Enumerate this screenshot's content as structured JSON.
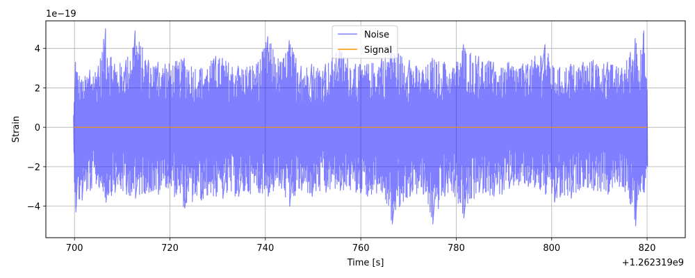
{
  "chart_data": {
    "type": "line",
    "title": "",
    "xlabel": "Time [s]",
    "ylabel": "Strain",
    "x_offset_label": "+1.262319e9",
    "y_scale_label": "1e−19",
    "xlim": [
      694,
      828
    ],
    "ylim": [
      -5.6,
      5.4
    ],
    "x_ticks": [
      700,
      720,
      740,
      760,
      780,
      800,
      820
    ],
    "x_tick_labels": [
      "700",
      "720",
      "740",
      "760",
      "780",
      "800",
      "820"
    ],
    "y_ticks": [
      -4,
      -2,
      0,
      2,
      4
    ],
    "y_tick_labels": [
      "−4",
      "−2",
      "0",
      "2",
      "4"
    ],
    "grid": true,
    "legend_position": "top-center",
    "x_range": [
      699.8,
      820
    ],
    "series": [
      {
        "name": "Noise",
        "color": "#0000ff",
        "alpha": 0.5,
        "x": [
          699.8,
          700.2,
          701.5,
          703.2,
          705.0,
          706.5,
          708.4,
          710.8,
          712.7,
          715.5,
          717.5,
          719.0,
          723.0,
          726.5,
          729.6,
          731.0,
          734.3,
          738.5,
          740.5,
          743.3,
          745.0,
          747.5,
          749.7,
          752.6,
          755.6,
          758.9,
          761.3,
          764.4,
          766.5,
          770.2,
          773.0,
          775.0,
          777.5,
          779.3,
          781.5,
          784.7,
          787.8,
          789.5,
          791.0,
          795.0,
          798.6,
          800.5,
          804.0,
          806.6,
          808.7,
          811.7,
          814.7,
          816.5,
          817.5,
          819.3,
          820.0
        ],
        "min": [
          -1.3,
          -4.3,
          -3.7,
          -3.2,
          -3.0,
          -3.8,
          -3.3,
          -3.4,
          -3.6,
          -3.3,
          -3.4,
          -3.0,
          -4.1,
          -3.7,
          -3.5,
          -3.6,
          -3.5,
          -3.3,
          -3.5,
          -3.1,
          -4.0,
          -3.2,
          -3.5,
          -3.3,
          -3.2,
          -3.3,
          -3.5,
          -3.3,
          -4.9,
          -3.5,
          -3.4,
          -4.9,
          -3.5,
          -3.3,
          -4.6,
          -3.3,
          -3.5,
          -3.4,
          -3.1,
          -3.0,
          -3.4,
          -3.8,
          -3.6,
          -3.0,
          -3.2,
          -3.4,
          -3.0,
          -3.9,
          -5.0,
          -3.3,
          -2.0
        ],
        "max": [
          0.6,
          3.3,
          2.4,
          2.9,
          3.1,
          5.0,
          3.2,
          3.4,
          4.9,
          3.4,
          3.3,
          3.2,
          3.5,
          3.0,
          3.6,
          3.5,
          3.1,
          3.3,
          4.6,
          3.3,
          4.4,
          3.1,
          3.2,
          3.2,
          4.0,
          3.2,
          3.2,
          3.5,
          4.1,
          3.4,
          2.9,
          3.5,
          3.3,
          3.0,
          4.2,
          3.6,
          3.3,
          3.0,
          3.3,
          3.2,
          4.2,
          3.0,
          3.2,
          3.3,
          3.4,
          3.3,
          3.0,
          3.8,
          4.5,
          4.9,
          1.9
        ]
      },
      {
        "name": "Signal",
        "color": "#ff9900",
        "x": [
          699.8,
          820.0
        ],
        "y": [
          0,
          0
        ]
      }
    ]
  }
}
